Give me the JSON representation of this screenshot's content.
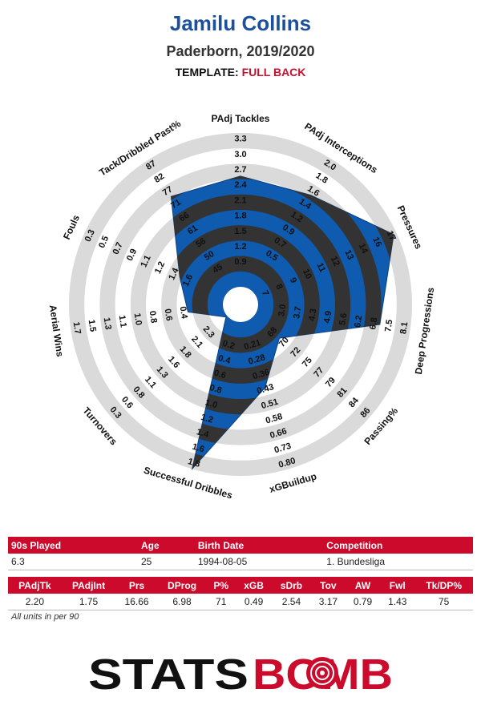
{
  "header": {
    "player": "Jamilu Collins",
    "team_season": "Paderborn, 2019/2020",
    "template_label": "TEMPLATE:",
    "template_value": "FULL BACK"
  },
  "chart_data": {
    "type": "radar",
    "rings": 10,
    "colors": {
      "fill": "#0f5bb0",
      "band": "#333333",
      "outer_band": "#dadada",
      "edge": "#0a3f80"
    },
    "metrics": [
      {
        "name": "PAdj Tackles",
        "ticks": [
          "0.9",
          "1.2",
          "1.5",
          "1.8",
          "2.1",
          "2.4",
          "2.7",
          "3.0",
          "3.3"
        ],
        "value": 2.2,
        "fraction": 0.72
      },
      {
        "name": "PAdj Interceptions",
        "ticks": [
          "0.5",
          "0.7",
          "0.9",
          "1.2",
          "1.4",
          "1.6",
          "1.8",
          "2.0"
        ],
        "value": 1.75,
        "fraction": 0.73
      },
      {
        "name": "Pressures",
        "ticks": [
          "7",
          "8",
          "9",
          "10",
          "11",
          "12",
          "13",
          "14",
          "16",
          "17"
        ],
        "value": 16.66,
        "fraction": 0.98
      },
      {
        "name": "Deep Progressions",
        "ticks": [
          "3.0",
          "3.7",
          "4.3",
          "4.9",
          "5.6",
          "6.2",
          "6.8",
          "7.5",
          "8.1"
        ],
        "value": 6.98,
        "fraction": 0.8
      },
      {
        "name": "Passing%",
        "ticks": [
          "68",
          "70",
          "72",
          "75",
          "77",
          "79",
          "81",
          "84",
          "86"
        ],
        "value": 71,
        "fraction": 0.22
      },
      {
        "name": "xGBuildup",
        "ticks": [
          "0.21",
          "0.28",
          "0.36",
          "0.43",
          "0.51",
          "0.58",
          "0.66",
          "0.73",
          "0.80"
        ],
        "value": 0.49,
        "fraction": 0.45
      },
      {
        "name": "Successful Dribbles",
        "ticks": [
          "0.2",
          "0.4",
          "0.6",
          "0.8",
          "1.0",
          "1.2",
          "1.4",
          "1.6",
          "1.8"
        ],
        "value": 2.54,
        "fraction": 1.0
      },
      {
        "name": "Turnovers",
        "ticks": [
          "2.3",
          "2.1",
          "1.8",
          "1.6",
          "1.3",
          "1.1",
          "0.8",
          "0.6",
          "0.3"
        ],
        "value": 3.17,
        "fraction": 0.01
      },
      {
        "name": "Aerial Wins",
        "ticks": [
          "0.4",
          "0.6",
          "0.8",
          "1.0",
          "1.1",
          "1.3",
          "1.5",
          "1.7"
        ],
        "value": 0.79,
        "fraction": 0.23
      },
      {
        "name": "Fouls",
        "ticks": [
          "1.6",
          "1.4",
          "1.2",
          "1.1",
          "0.9",
          "0.7",
          "0.5",
          "0.3"
        ],
        "value": 1.43,
        "fraction": 0.32
      },
      {
        "name": "Tack/Dribbled Past%",
        "ticks": [
          "45",
          "50",
          "56",
          "61",
          "66",
          "71",
          "77",
          "82",
          "87"
        ],
        "value": 75,
        "fraction": 0.72
      }
    ]
  },
  "info_table": {
    "headers": [
      "90s Played",
      "Age",
      "Birth Date",
      "Competition"
    ],
    "row": [
      "6.3",
      "25",
      "1994-08-05",
      "1. Bundesliga"
    ]
  },
  "stats_table": {
    "headers": [
      "PAdjTk",
      "PAdjInt",
      "Prs",
      "DProg",
      "P%",
      "xGB",
      "sDrb",
      "Tov",
      "AW",
      "Fwl",
      "Tk/DP%"
    ],
    "row": [
      "2.20",
      "1.75",
      "16.66",
      "6.98",
      "71",
      "0.49",
      "2.54",
      "3.17",
      "0.79",
      "1.43",
      "75"
    ]
  },
  "footnote": "All units in per 90",
  "logo": {
    "left": "STATS",
    "right": "BOMB",
    "left_color": "#111111",
    "right_color": "#cc0a2b"
  }
}
